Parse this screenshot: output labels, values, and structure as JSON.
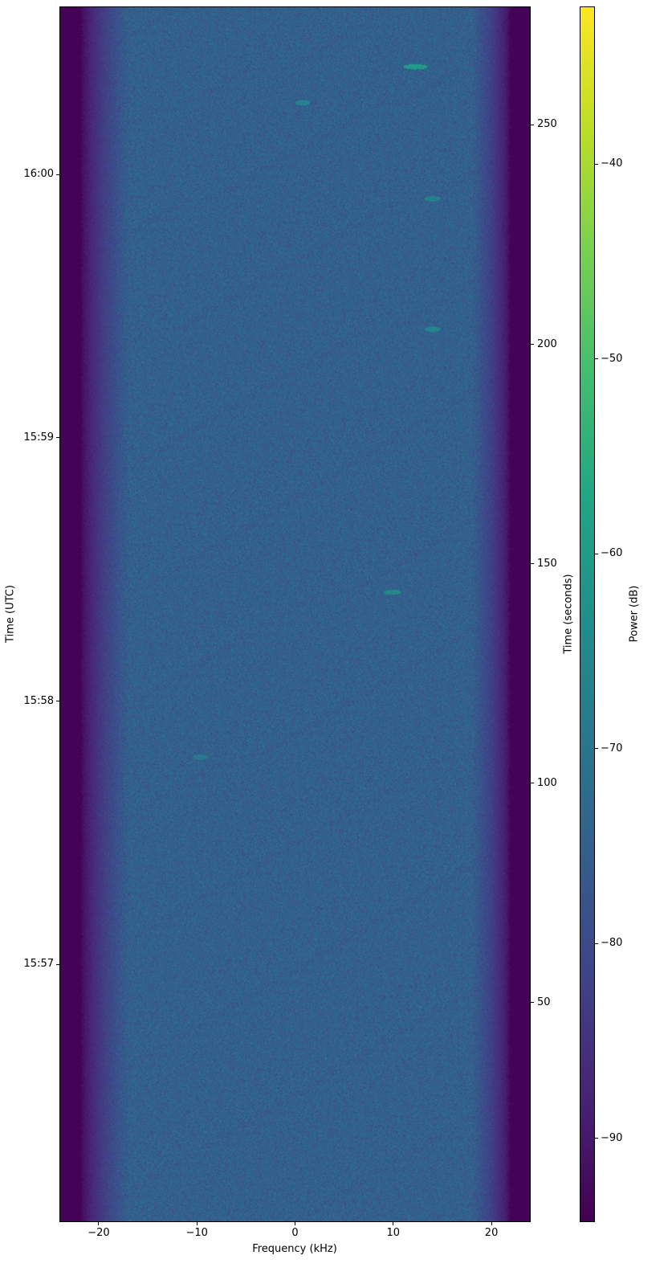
{
  "chart_data": {
    "type": "heatmap",
    "title": "",
    "xlabel": "Frequency (kHz)",
    "ylabel_left": "Time (UTC)",
    "ylabel_right": "Time (seconds)",
    "colorbar_label": "Power (dB)",
    "colormap": "viridis",
    "xlim": [
      -24,
      24
    ],
    "ylim": [
      0,
      277
    ],
    "clim": [
      -94.3,
      -31.9
    ],
    "x_ticks": [
      -20,
      -10,
      0,
      10,
      20
    ],
    "x_tick_labels": [
      "−20",
      "−10",
      "0",
      "10",
      "20"
    ],
    "y_right_ticks": [
      50,
      100,
      150,
      200,
      250
    ],
    "y_right_tick_labels": [
      "50",
      "100",
      "150",
      "200",
      "250"
    ],
    "y_left_ticks": [
      58.7,
      118.7,
      178.7,
      238.7
    ],
    "y_left_tick_labels": [
      "15:57",
      "15:58",
      "15:59",
      "16:00"
    ],
    "colorbar_ticks": [
      -90,
      -80,
      -70,
      -60,
      -50,
      -40
    ],
    "colorbar_tick_labels": [
      "−90",
      "−80",
      "−70",
      "−60",
      "−50",
      "−40"
    ],
    "background": {
      "passband_power_db": -75,
      "noise_floor_db": -94,
      "passband_khz": [
        -17,
        18
      ],
      "rolloff_edges_khz": [
        -22,
        22
      ]
    },
    "features": [
      {
        "freq_khz": [
          11,
          13.5
        ],
        "time_s": 263.5,
        "power_db": -60
      },
      {
        "freq_khz": [
          0,
          1.5
        ],
        "time_s": 255.3,
        "power_db": -66
      },
      {
        "freq_khz": [
          13.2,
          14.8
        ],
        "time_s": 233.4,
        "power_db": -67
      },
      {
        "freq_khz": [
          13.2,
          14.8
        ],
        "time_s": 203.6,
        "power_db": -66
      },
      {
        "freq_khz": [
          9,
          10.8
        ],
        "time_s": 143.6,
        "power_db": -65
      },
      {
        "freq_khz": [
          -10.5,
          -9
        ],
        "time_s": 106,
        "power_db": -69
      }
    ]
  }
}
